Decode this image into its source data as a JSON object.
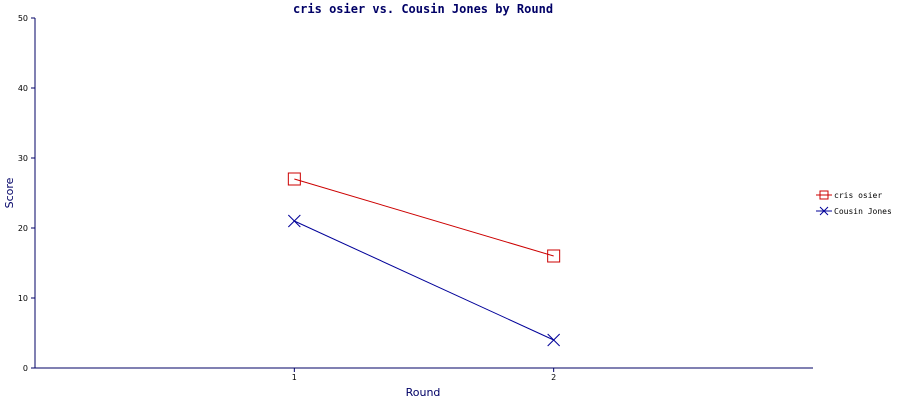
{
  "chart_data": {
    "type": "line",
    "title": "cris osier vs. Cousin Jones by Round",
    "xlabel": "Round",
    "ylabel": "Score",
    "x": [
      1,
      2
    ],
    "x_tick_labels": [
      "1",
      "2"
    ],
    "xlim": [
      0,
      3
    ],
    "ylim": [
      0,
      50
    ],
    "y_ticks": [
      0,
      10,
      20,
      30,
      40,
      50
    ],
    "grid": false,
    "legend_position": "right",
    "series": [
      {
        "name": "cris osier",
        "values": [
          27,
          16
        ],
        "color": "#cc0000",
        "marker": "square"
      },
      {
        "name": "Cousin Jones",
        "values": [
          21,
          4
        ],
        "color": "#000099",
        "marker": "x"
      }
    ]
  },
  "axis_color": "#000066"
}
